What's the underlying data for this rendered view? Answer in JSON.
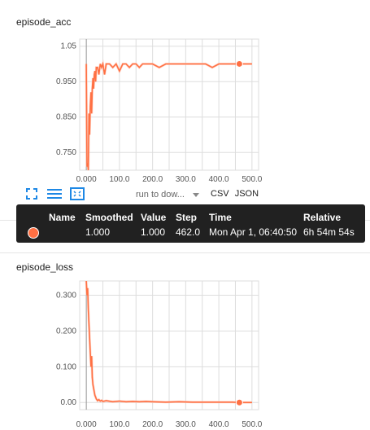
{
  "cards": {
    "acc_title": "episode_acc",
    "loss_header_title": "episode_loss",
    "loss_title": "episode_loss"
  },
  "toolbar": {
    "run_select": "run to dow...",
    "csv": "CSV",
    "json": "JSON"
  },
  "tooltip": {
    "headers": {
      "name": "Name",
      "smoothed": "Smoothed",
      "value": "Value",
      "step": "Step",
      "time": "Time",
      "relative": "Relative"
    },
    "row": {
      "smoothed": "1.000",
      "value": "1.000",
      "step": "462.0",
      "time": "Mon Apr 1, 06:40:50",
      "relative": "6h 54m 54s"
    },
    "color": "#ff7043"
  },
  "colors": {
    "line": "#ff7043",
    "line_raw": "#ffccbc",
    "grid": "#dddddd"
  },
  "chart_data": [
    {
      "type": "line",
      "title": "episode_acc",
      "xlabel": "",
      "ylabel": "",
      "xlim": [
        -20,
        520
      ],
      "ylim": [
        0.7,
        1.07
      ],
      "x_ticks": [
        "0.000",
        "100.0",
        "200.0",
        "300.0",
        "400.0",
        "500.0"
      ],
      "x_tick_values": [
        0,
        100,
        200,
        300,
        400,
        500
      ],
      "y_ticks": [
        "0.750",
        "0.850",
        "0.950",
        "1.05"
      ],
      "y_tick_values": [
        0.75,
        0.85,
        0.95,
        1.05
      ],
      "series": [
        {
          "x": [
            0,
            2,
            4,
            6,
            8,
            10,
            12,
            14,
            16,
            18,
            20,
            22,
            24,
            26,
            28,
            30,
            34,
            38,
            42,
            46,
            50,
            55,
            60,
            70,
            80,
            90,
            100,
            110,
            120,
            130,
            140,
            150,
            160,
            170,
            180,
            190,
            200,
            220,
            240,
            260,
            280,
            300,
            320,
            340,
            360,
            380,
            400,
            420,
            440,
            462,
            480,
            500
          ],
          "y": [
            1.0,
            0.71,
            0.72,
            0.7,
            0.86,
            0.8,
            0.88,
            0.92,
            0.86,
            0.93,
            0.96,
            0.93,
            0.97,
            0.98,
            0.95,
            0.99,
            0.99,
            0.97,
            1.0,
            0.99,
            1.0,
            0.97,
            1.0,
            1.0,
            0.99,
            1.0,
            0.98,
            1.0,
            1.0,
            0.99,
            1.0,
            1.0,
            0.99,
            1.0,
            1.0,
            1.0,
            1.0,
            0.99,
            1.0,
            1.0,
            1.0,
            1.0,
            1.0,
            1.0,
            1.0,
            0.99,
            1.0,
            1.0,
            1.0,
            1.0,
            1.0,
            1.0
          ],
          "marker_at": 462
        }
      ]
    },
    {
      "type": "line",
      "title": "episode_loss",
      "xlabel": "",
      "ylabel": "",
      "xlim": [
        -20,
        520
      ],
      "ylim": [
        -0.02,
        0.34
      ],
      "x_ticks": [
        "0.000",
        "100.0",
        "200.0",
        "300.0",
        "400.0",
        "500.0"
      ],
      "x_tick_values": [
        0,
        100,
        200,
        300,
        400,
        500
      ],
      "y_ticks": [
        "0.00",
        "0.100",
        "0.200",
        "0.300"
      ],
      "y_tick_values": [
        0.0,
        0.1,
        0.2,
        0.3
      ],
      "series": [
        {
          "x": [
            0,
            2,
            4,
            6,
            8,
            10,
            12,
            14,
            16,
            18,
            20,
            22,
            24,
            26,
            28,
            30,
            34,
            38,
            42,
            46,
            50,
            60,
            80,
            100,
            120,
            140,
            160,
            180,
            200,
            240,
            280,
            320,
            360,
            400,
            440,
            462,
            480,
            500
          ],
          "y": [
            0.34,
            0.3,
            0.32,
            0.26,
            0.22,
            0.18,
            0.14,
            0.1,
            0.13,
            0.07,
            0.05,
            0.04,
            0.03,
            0.02,
            0.015,
            0.01,
            0.005,
            0.008,
            0.004,
            0.006,
            0.003,
            0.005,
            0.002,
            0.004,
            0.002,
            0.003,
            0.002,
            0.003,
            0.002,
            0.001,
            0.002,
            0.001,
            0.001,
            0.001,
            0.001,
            0.0,
            0.0,
            0.0
          ],
          "marker_at": 462
        }
      ]
    }
  ]
}
